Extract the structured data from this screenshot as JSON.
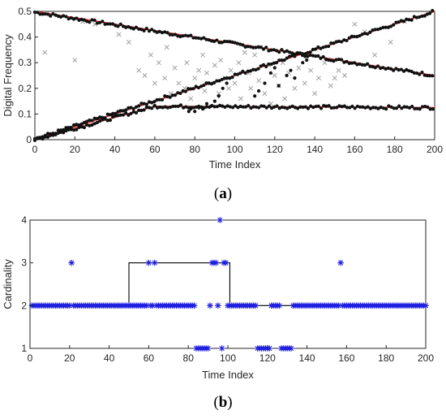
{
  "chart_data": [
    {
      "type": "scatter",
      "caption": "(a)",
      "caption_letter": "a",
      "xlabel": "Time Index",
      "ylabel": "Digital Frequency",
      "xlim": [
        0,
        200
      ],
      "ylim": [
        0,
        0.5
      ],
      "xticks": [
        "0",
        "20",
        "40",
        "60",
        "80",
        "100",
        "120",
        "140",
        "160",
        "180",
        "200"
      ],
      "yticks": [
        "0",
        "0.1",
        "0.2",
        "0.3",
        "0.4",
        "0.5"
      ],
      "grid": false,
      "colors": {
        "true": "#e03030",
        "estimate": "#111111",
        "clutter": "#a0a0a0"
      },
      "true_tracks": [
        {
          "x": [
            0,
            200
          ],
          "y": [
            0.5,
            0.25
          ]
        },
        {
          "x": [
            0,
            200
          ],
          "y": [
            0.0,
            0.5
          ]
        },
        {
          "x": [
            0,
            60,
            200
          ],
          "y": [
            0.0,
            0.13,
            0.125
          ]
        }
      ],
      "estimate_segments": [
        {
          "x": [
            0,
            200
          ],
          "y": [
            0.497,
            0.25
          ],
          "step": 1.3,
          "jitter": 0.006
        },
        {
          "x": [
            0,
            200
          ],
          "y": [
            0.003,
            0.5
          ],
          "step": 1.3,
          "jitter": 0.006
        },
        {
          "x": [
            0,
            60
          ],
          "y": [
            0.0,
            0.13
          ],
          "step": 1.3,
          "jitter": 0.006
        },
        {
          "x": [
            60,
            200
          ],
          "y": [
            0.13,
            0.125
          ],
          "step": 1.3,
          "jitter": 0.006
        }
      ],
      "clutter_points": [
        [
          5,
          0.34
        ],
        [
          20,
          0.31
        ],
        [
          24,
          0.46
        ],
        [
          30,
          0.45
        ],
        [
          42,
          0.41
        ],
        [
          47,
          0.38
        ],
        [
          52,
          0.27
        ],
        [
          55,
          0.25
        ],
        [
          58,
          0.33
        ],
        [
          60,
          0.22
        ],
        [
          62,
          0.3
        ],
        [
          65,
          0.24
        ],
        [
          66,
          0.36
        ],
        [
          68,
          0.18
        ],
        [
          70,
          0.28
        ],
        [
          72,
          0.22
        ],
        [
          75,
          0.2
        ],
        [
          76,
          0.3
        ],
        [
          78,
          0.16
        ],
        [
          80,
          0.24
        ],
        [
          82,
          0.27
        ],
        [
          84,
          0.33
        ],
        [
          85,
          0.19
        ],
        [
          86,
          0.26
        ],
        [
          88,
          0.22
        ],
        [
          90,
          0.29
        ],
        [
          92,
          0.18
        ],
        [
          93,
          0.31
        ],
        [
          95,
          0.24
        ],
        [
          97,
          0.2
        ],
        [
          98,
          0.27
        ],
        [
          100,
          0.22
        ],
        [
          102,
          0.3
        ],
        [
          103,
          0.16
        ],
        [
          105,
          0.34
        ],
        [
          107,
          0.26
        ],
        [
          108,
          0.2
        ],
        [
          110,
          0.33
        ],
        [
          112,
          0.23
        ],
        [
          113,
          0.36
        ],
        [
          115,
          0.18
        ],
        [
          117,
          0.29
        ],
        [
          118,
          0.14
        ],
        [
          120,
          0.25
        ],
        [
          122,
          0.21
        ],
        [
          124,
          0.3
        ],
        [
          125,
          0.16
        ],
        [
          127,
          0.26
        ],
        [
          130,
          0.2
        ],
        [
          132,
          0.28
        ],
        [
          135,
          0.22
        ],
        [
          138,
          0.27
        ],
        [
          140,
          0.18
        ],
        [
          142,
          0.24
        ],
        [
          145,
          0.3
        ],
        [
          148,
          0.21
        ],
        [
          150,
          0.24
        ],
        [
          152,
          0.27
        ],
        [
          155,
          0.25
        ],
        [
          160,
          0.45
        ],
        [
          165,
          0.42
        ],
        [
          170,
          0.33
        ],
        [
          178,
          0.38
        ],
        [
          185,
          0.46
        ]
      ],
      "extra_estimates": [
        [
          77,
          0.11
        ],
        [
          78,
          0.12
        ],
        [
          80,
          0.11
        ],
        [
          82,
          0.13
        ],
        [
          84,
          0.12
        ],
        [
          86,
          0.14
        ],
        [
          88,
          0.13
        ],
        [
          90,
          0.15
        ],
        [
          92,
          0.17
        ],
        [
          94,
          0.2
        ],
        [
          96,
          0.22
        ],
        [
          110,
          0.17
        ],
        [
          112,
          0.19
        ],
        [
          115,
          0.22
        ],
        [
          118,
          0.26
        ],
        [
          120,
          0.28
        ],
        [
          122,
          0.21
        ],
        [
          126,
          0.25
        ],
        [
          128,
          0.27
        ],
        [
          130,
          0.24
        ],
        [
          134,
          0.3
        ],
        [
          136,
          0.31
        ]
      ]
    },
    {
      "type": "scatter",
      "caption": "(b)",
      "caption_letter": "b",
      "xlabel": "Time Index",
      "ylabel": "Cardinality",
      "xlim": [
        0,
        200
      ],
      "ylim": [
        1,
        4
      ],
      "xticks": [
        "0",
        "20",
        "40",
        "60",
        "80",
        "100",
        "120",
        "140",
        "160",
        "180",
        "200"
      ],
      "yticks": [
        "1",
        "2",
        "3",
        "4"
      ],
      "grid": false,
      "colors": {
        "estimate": "#1f1fe0",
        "true": "#000000"
      },
      "true_cardinality": {
        "x": [
          1,
          50,
          50,
          101,
          101,
          200
        ],
        "y": [
          2,
          2,
          3,
          3,
          2,
          2
        ]
      },
      "estimated_cardinality_runs": [
        {
          "from": 1,
          "to": 83,
          "value": 2
        },
        {
          "from": 84,
          "to": 90,
          "value": 1
        },
        {
          "from": 91,
          "to": 91,
          "value": 2
        },
        {
          "from": 92,
          "to": 94,
          "value": 3
        },
        {
          "from": 95,
          "to": 95,
          "value": 2
        },
        {
          "from": 96,
          "to": 96,
          "value": 4
        },
        {
          "from": 97,
          "to": 99,
          "value": 3
        },
        {
          "from": 100,
          "to": 114,
          "value": 2
        },
        {
          "from": 115,
          "to": 121,
          "value": 1
        },
        {
          "from": 122,
          "to": 126,
          "value": 2
        },
        {
          "from": 127,
          "to": 132,
          "value": 1
        },
        {
          "from": 133,
          "to": 200,
          "value": 2
        }
      ],
      "estimated_overrides": [
        {
          "x": 21,
          "value": 3
        },
        {
          "x": 60,
          "value": 3
        },
        {
          "x": 63,
          "value": 3
        },
        {
          "x": 157,
          "value": 3
        },
        {
          "x": 97,
          "value": 1
        }
      ]
    }
  ]
}
